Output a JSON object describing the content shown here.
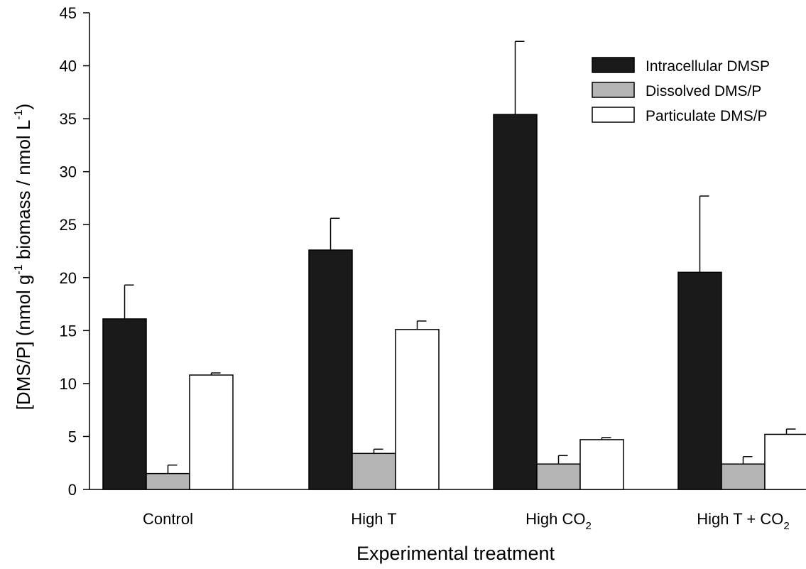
{
  "chart_data": {
    "type": "bar",
    "categories": [
      "Control",
      "High T",
      "High CO2",
      "High T + CO2"
    ],
    "category_labels": [
      {
        "text": "Control",
        "sub": ""
      },
      {
        "text": "High T",
        "sub": ""
      },
      {
        "text": "High CO",
        "sub": "2"
      },
      {
        "text": "High T + CO",
        "sub": "2"
      }
    ],
    "series": [
      {
        "name": "Intracellular DMSP",
        "color": "#1a1a1a",
        "values": [
          16.1,
          22.6,
          35.4,
          20.5
        ],
        "errors": [
          3.2,
          3.0,
          6.9,
          7.2
        ]
      },
      {
        "name": "Dissolved DMS/P",
        "color": "#b4b4b4",
        "values": [
          1.5,
          3.4,
          2.4,
          2.4
        ],
        "errors": [
          0.8,
          0.4,
          0.8,
          0.7
        ]
      },
      {
        "name": "Particulate DMS/P",
        "color": "#ffffff",
        "values": [
          10.8,
          15.1,
          4.7,
          5.2
        ],
        "errors": [
          0.2,
          0.8,
          0.2,
          0.5
        ]
      }
    ],
    "ylim": [
      0,
      45
    ],
    "yticks": [
      0,
      5,
      10,
      15,
      20,
      25,
      30,
      35,
      40,
      45
    ],
    "xlabel": "Experimental treatment",
    "ylabel": {
      "parts": [
        {
          "text": "[DMS/P] (nmol g",
          "style": "normal"
        },
        {
          "text": "-1",
          "style": "sup"
        },
        {
          "text": " biomass / nmol L",
          "style": "normal"
        },
        {
          "text": "-1",
          "style": "sup"
        },
        {
          "text": ")",
          "style": "normal"
        }
      ]
    },
    "legend_position": "top-right",
    "grid": false
  }
}
